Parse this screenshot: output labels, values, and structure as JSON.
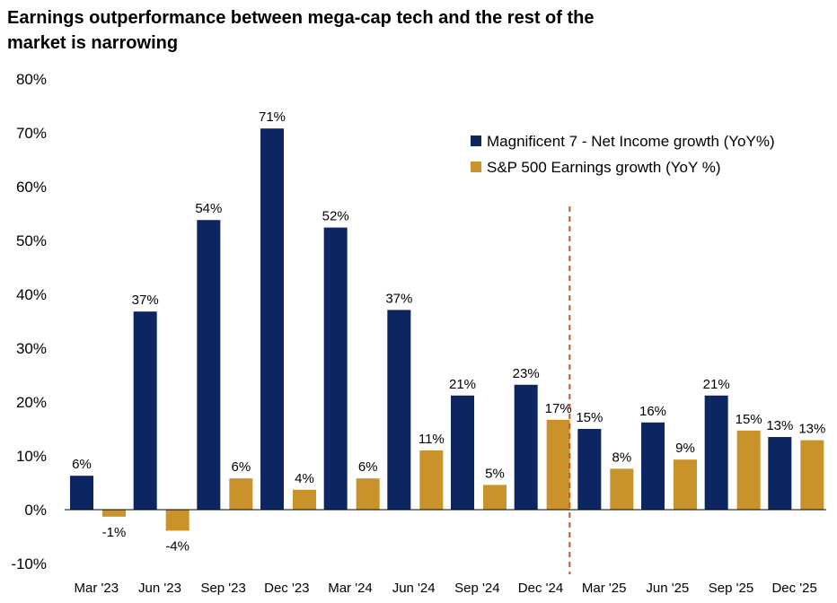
{
  "title_lines": [
    "Earnings outperformance between mega-cap tech and the rest of the",
    "market is narrowing"
  ],
  "chart_data": {
    "type": "bar",
    "title": "Earnings outperformance between mega-cap tech and the rest of the market is narrowing",
    "categories": [
      "Mar '23",
      "Jun '23",
      "Sep '23",
      "Dec '23",
      "Mar '24",
      "Jun '24",
      "Sep '24",
      "Dec '24",
      "Mar '25",
      "Jun '25",
      "Sep '25",
      "Dec '25"
    ],
    "series": [
      {
        "name": "Magnificent 7 - Net Income growth (YoY%)",
        "color": "#0b2660",
        "values": [
          6.3,
          36.8,
          53.8,
          70.8,
          52.4,
          37.1,
          21.2,
          23.2,
          15.0,
          16.2,
          21.2,
          13.5
        ],
        "labels": [
          "6%",
          "37%",
          "54%",
          "71%",
          "52%",
          "37%",
          "21%",
          "23%",
          "15%",
          "16%",
          "21%",
          "13%"
        ]
      },
      {
        "name": "S&P 500 Earnings growth (YoY %)",
        "color": "#c9922a",
        "values": [
          -1.3,
          -3.9,
          5.8,
          3.7,
          5.8,
          11.0,
          4.6,
          16.7,
          7.6,
          9.3,
          14.7,
          12.9
        ],
        "labels": [
          "-1%",
          "-4%",
          "6%",
          "4%",
          "6%",
          "11%",
          "5%",
          "17%",
          "8%",
          "9%",
          "15%",
          "13%"
        ]
      }
    ],
    "yaxis": {
      "min": -10,
      "max": 80,
      "step": 10,
      "tick_labels": [
        "-10%",
        "0%",
        "10%",
        "20%",
        "30%",
        "40%",
        "50%",
        "60%",
        "70%",
        "80%"
      ]
    },
    "divider_after_category": "Dec '24",
    "divider_color": "#c0582a",
    "legend_position": "top-right",
    "xlabel": "",
    "ylabel": ""
  }
}
